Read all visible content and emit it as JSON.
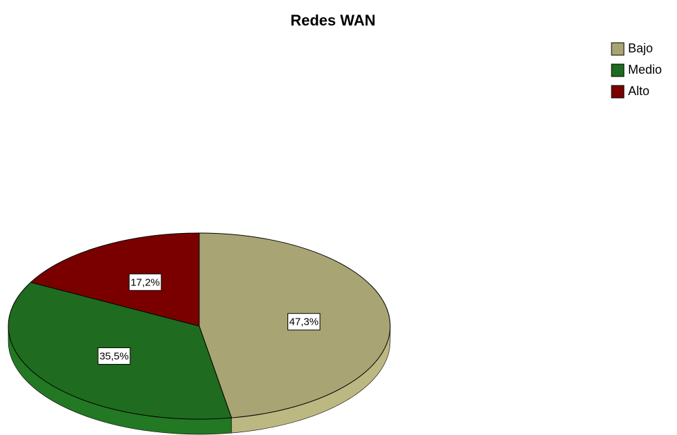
{
  "chart_data": {
    "type": "pie",
    "title": "Redes WAN",
    "categories": [
      "Bajo",
      "Medio",
      "Alto"
    ],
    "values": [
      47.3,
      35.5,
      17.2
    ],
    "value_labels": [
      "47,3%",
      "35,5%",
      "17,2%"
    ],
    "colors": [
      "#a8a474",
      "#1f6b1f",
      "#7a0000"
    ],
    "legend": "top-right"
  }
}
